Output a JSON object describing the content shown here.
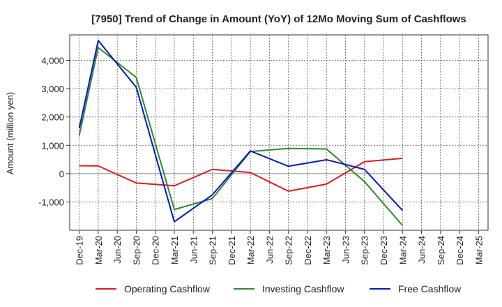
{
  "chart_data": {
    "type": "line",
    "title": "[7950]  Trend of Change in Amount (YoY) of 12Mo Moving Sum of Cashflows",
    "xlabel": "",
    "ylabel": "Amount (million yen)",
    "ylim": [
      -2000,
      4900
    ],
    "yticks": [
      -1000,
      0,
      1000,
      2000,
      3000,
      4000
    ],
    "ytick_labels": [
      "-1,000",
      "0",
      "1,000",
      "2,000",
      "3,000",
      "4,000"
    ],
    "categories": [
      "Dec-19",
      "Mar-20",
      "Jun-20",
      "Sep-20",
      "Dec-20",
      "Mar-21",
      "Jun-21",
      "Sep-21",
      "Dec-21",
      "Mar-22",
      "Jun-22",
      "Sep-22",
      "Dec-22",
      "Mar-23",
      "Jun-23",
      "Sep-23",
      "Dec-23",
      "Mar-24",
      "Jun-24",
      "Sep-24",
      "Dec-24",
      "Mar-25"
    ],
    "series": [
      {
        "name": "Operating Cashflow",
        "color": "#e31a1c",
        "values": [
          280,
          270,
          null,
          -330,
          null,
          -430,
          null,
          150,
          null,
          40,
          null,
          -620,
          null,
          -370,
          null,
          420,
          null,
          540,
          null,
          null,
          null,
          null
        ]
      },
      {
        "name": "Investing Cashflow",
        "color": "#2a8a2a",
        "values": [
          1350,
          4450,
          null,
          3400,
          null,
          -1270,
          null,
          -880,
          null,
          780,
          null,
          890,
          null,
          870,
          null,
          -280,
          null,
          -1830,
          null,
          null,
          null,
          null
        ]
      },
      {
        "name": "Free Cashflow",
        "color": "#0a14c8",
        "values": [
          1600,
          4700,
          null,
          3050,
          null,
          -1700,
          null,
          -750,
          null,
          800,
          null,
          260,
          null,
          490,
          null,
          150,
          null,
          -1300,
          null,
          null,
          null,
          null
        ]
      }
    ],
    "grid": true,
    "legend_position": "bottom"
  }
}
